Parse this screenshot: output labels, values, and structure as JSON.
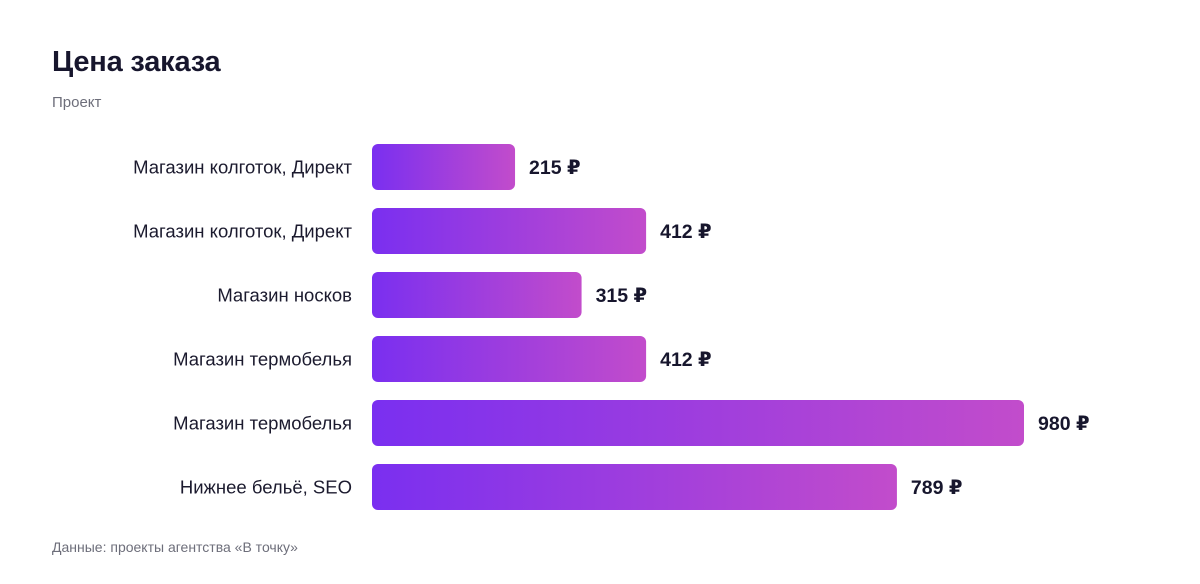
{
  "header": {
    "title": "Цена заказа",
    "subtitle": "Проект"
  },
  "footer": {
    "source": "Данные: проекты агентства «В точку»"
  },
  "colors": {
    "bar_start": "#7a2ff0",
    "bar_end": "#c24ccb",
    "text": "#17162d",
    "muted": "#6d6e7a"
  },
  "chart_data": {
    "type": "bar",
    "orientation": "horizontal",
    "title": "Цена заказа",
    "subtitle": "Проект",
    "categories": [
      "Магазин колготок, Директ",
      "Магазин колготок, Директ",
      "Магазин носков",
      "Магазин термобелья",
      "Магазин термобелья",
      "Нижнее бельё, SEO"
    ],
    "values": [
      215,
      412,
      315,
      412,
      980,
      789
    ],
    "value_labels": [
      "215 ₽",
      "412 ₽",
      "315 ₽",
      "412 ₽",
      "980 ₽",
      "789 ₽"
    ],
    "unit": "₽",
    "xlim": [
      0,
      980
    ],
    "grid": false,
    "legend": "none"
  }
}
